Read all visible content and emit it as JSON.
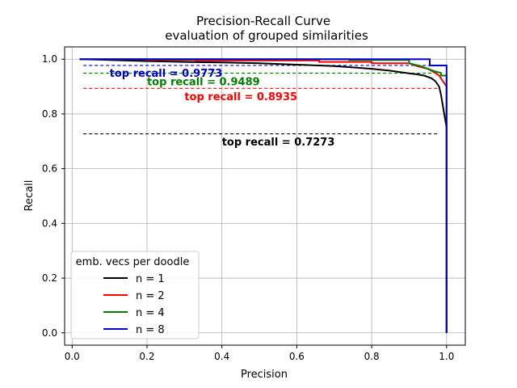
{
  "chart_data": {
    "type": "line",
    "title": "Precision-Recall Curve",
    "subtitle": "evaluation of grouped similarities",
    "xlabel": "Precision",
    "ylabel": "Recall",
    "xlim": [
      -0.02,
      1.05
    ],
    "ylim": [
      -0.045,
      1.045
    ],
    "xticks": [
      0.0,
      0.2,
      0.4,
      0.6,
      0.8,
      1.0
    ],
    "xtick_labels": [
      "0.0",
      "0.2",
      "0.4",
      "0.6",
      "0.8",
      "1.0"
    ],
    "yticks": [
      0.0,
      0.2,
      0.4,
      0.6,
      0.8,
      1.0
    ],
    "ytick_labels": [
      "0.0",
      "0.2",
      "0.4",
      "0.6",
      "0.8",
      "1.0"
    ],
    "grid": true,
    "legend": {
      "title": "emb. vecs per doodle",
      "position": "lower-left"
    },
    "series": [
      {
        "name": "n = 1",
        "color": "#000000",
        "x": [
          0.02,
          0.1,
          0.2,
          0.3,
          0.4,
          0.5,
          0.6,
          0.7,
          0.75,
          0.8,
          0.85,
          0.88,
          0.9,
          0.92,
          0.94,
          0.95,
          0.96,
          0.97,
          0.98,
          0.985,
          0.99,
          0.995,
          1.0,
          1.0
        ],
        "y": [
          1.0,
          0.997,
          0.993,
          0.99,
          0.988,
          0.985,
          0.98,
          0.975,
          0.97,
          0.965,
          0.958,
          0.952,
          0.948,
          0.945,
          0.94,
          0.935,
          0.93,
          0.92,
          0.9,
          0.87,
          0.83,
          0.79,
          0.75,
          0.0
        ]
      },
      {
        "name": "n = 2",
        "color": "#ff0000",
        "x": [
          0.02,
          0.2,
          0.2,
          0.33,
          0.33,
          0.66,
          0.66,
          0.8,
          0.8,
          0.9,
          0.92,
          0.95,
          0.97,
          0.98,
          0.99,
          1.0,
          1.0
        ],
        "y": [
          1.0,
          1.0,
          0.997,
          0.997,
          0.995,
          0.995,
          0.99,
          0.99,
          0.985,
          0.985,
          0.975,
          0.965,
          0.95,
          0.94,
          0.92,
          0.9,
          0.0
        ]
      },
      {
        "name": "n = 4",
        "color": "#008000",
        "x": [
          0.02,
          0.74,
          0.74,
          0.9,
          0.9,
          0.93,
          0.95,
          0.97,
          0.985,
          0.985,
          1.0,
          1.0
        ],
        "y": [
          1.0,
          1.0,
          0.997,
          0.997,
          0.985,
          0.975,
          0.965,
          0.955,
          0.95,
          0.94,
          0.94,
          0.0
        ]
      },
      {
        "name": "n = 8",
        "color": "#0000cc",
        "x": [
          0.02,
          0.955,
          0.955,
          1.0,
          1.0
        ],
        "y": [
          1.0,
          1.0,
          0.977,
          0.977,
          0.0
        ]
      }
    ],
    "reference_lines": [
      {
        "y": 0.9773,
        "x_start": 0.03,
        "x_end": 0.98,
        "color": "#0000cc"
      },
      {
        "y": 0.9489,
        "x_start": 0.03,
        "x_end": 0.98,
        "color": "#008000"
      },
      {
        "y": 0.8935,
        "x_start": 0.03,
        "x_end": 0.98,
        "color": "#ff0000"
      },
      {
        "y": 0.7273,
        "x_start": 0.03,
        "x_end": 0.98,
        "color": "#000000"
      }
    ],
    "annotations": [
      {
        "text": "top recall = 0.9773",
        "x": 0.1,
        "y": 0.935,
        "color": "#0000cc"
      },
      {
        "text": "top recall = 0.9489",
        "x": 0.2,
        "y": 0.905,
        "color": "#008000"
      },
      {
        "text": "top recall = 0.8935",
        "x": 0.3,
        "y": 0.85,
        "color": "#ff0000"
      },
      {
        "text": "top recall = 0.7273",
        "x": 0.4,
        "y": 0.685,
        "color": "#000000"
      }
    ]
  }
}
